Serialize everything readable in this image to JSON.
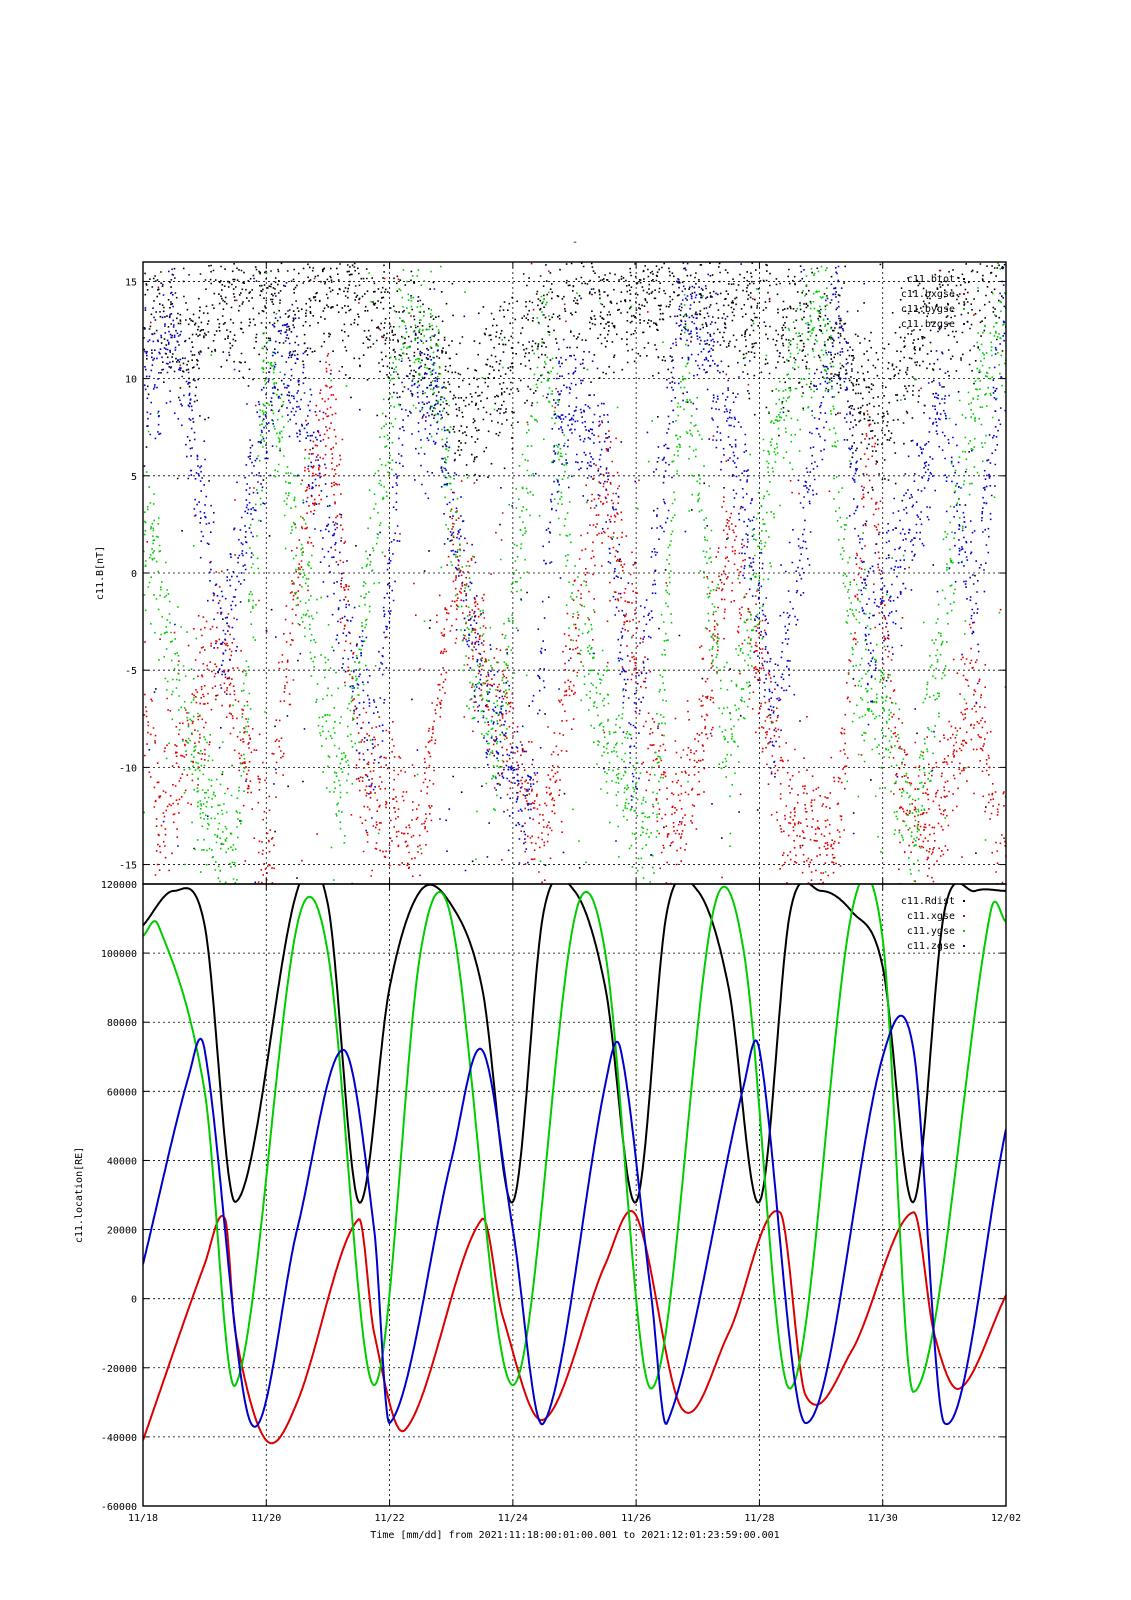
{
  "figure_title": "-",
  "xaxis": {
    "label": "Time [mm/dd]  from 2021:11:18:00:01:00.001  to  2021:12:01:23:59:00.001",
    "range": [
      "2021-11-18",
      "2021-12-02"
    ],
    "tick_labels": [
      "11/18",
      "11/20",
      "11/22",
      "11/24",
      "11/26",
      "11/28",
      "11/30",
      "12/02"
    ]
  },
  "chart_data": [
    {
      "type": "scatter",
      "ylabel": "c11.B[nT]",
      "ylim": [
        -16,
        16
      ],
      "yticks": [
        -15,
        -10,
        -5,
        0,
        5,
        10,
        15
      ],
      "grid": true,
      "legend_position": "top-right",
      "series": [
        {
          "name": "c11.btot",
          "color": "#000000",
          "x": [
            "11/18 06:00",
            "11/18 18:00",
            "11/19 06:00",
            "11/20 12:00",
            "11/21 06:00",
            "11/22 18:00",
            "11/23 06:00",
            "11/24 18:00",
            "11/25 06:00",
            "11/26 06:00",
            "11/27 06:00",
            "11/27 18:00",
            "11/29 00:00",
            "11/29 12:00",
            "11/30 00:00",
            "11/30 18:00",
            "12/01 18:00"
          ],
          "y": [
            14,
            11,
            14,
            14,
            15,
            11,
            8,
            14,
            14,
            14,
            15,
            13,
            13,
            10,
            8,
            13,
            15
          ]
        },
        {
          "name": "c11.bxgse",
          "color": "#dd0000",
          "x": [
            "11/18 00:00",
            "11/18 06:00",
            "11/18 18:00",
            "11/19 06:00",
            "11/20 00:00",
            "11/20 12:00",
            "11/21 00:00",
            "11/21 12:00",
            "11/22 12:00",
            "11/23 00:00",
            "11/23 12:00",
            "11/24 12:00",
            "11/25 00:00",
            "11/25 12:00",
            "11/26 12:00",
            "11/27 00:00",
            "11/27 12:00",
            "11/28 12:00",
            "11/29 06:00",
            "11/29 18:00",
            "11/30 06:00",
            "11/30 18:00",
            "12/01 12:00",
            "12/01 21:00"
          ],
          "y": [
            -6,
            -13,
            -8,
            -3,
            -15,
            1,
            9,
            -10,
            -14,
            1,
            -4,
            -14,
            -3,
            5,
            -14,
            -9,
            2,
            -13,
            -14,
            7,
            -11,
            -13,
            -6,
            -14
          ]
        },
        {
          "name": "c11.bygse",
          "color": "#00cc00",
          "x": [
            "11/18 03:00",
            "11/18 12:00",
            "11/19 00:00",
            "11/19 12:00",
            "11/20 00:00",
            "11/20 18:00",
            "11/21 06:00",
            "11/22 06:00",
            "11/22 18:00",
            "11/23 06:00",
            "11/23 18:00",
            "11/24 12:00",
            "11/25 00:00",
            "11/25 12:00",
            "11/26 06:00",
            "11/26 18:00",
            "11/27 12:00",
            "11/28 06:00",
            "11/29 00:00",
            "11/29 12:00",
            "11/30 00:00",
            "11/30 12:00",
            "12/01 06:00",
            "12/01 20:00"
          ],
          "y": [
            2,
            -5,
            -12,
            -15,
            12,
            -4,
            -10,
            14,
            10,
            -3,
            -9,
            13,
            -2,
            -8,
            -15,
            12,
            -10,
            7,
            14,
            -4,
            -7,
            -14,
            5,
            13
          ]
        },
        {
          "name": "c11.bzgse",
          "color": "#0000cc",
          "x": [
            "11/18 00:00",
            "11/18 12:00",
            "11/19 00:00",
            "11/19 06:00",
            "11/20 06:00",
            "11/20 18:00",
            "11/21 06:00",
            "11/21 18:00",
            "11/22 06:00",
            "11/22 18:00",
            "11/23 12:00",
            "11/24 06:00",
            "11/24 18:00",
            "11/25 12:00",
            "11/25 22:00",
            "11/26 18:00",
            "11/27 06:00",
            "11/27 18:00",
            "11/28 06:00",
            "11/29 06:00",
            "11/29 18:00",
            "11/30 06:00",
            "11/30 22:00",
            "12/01 12:00",
            "12/01 22:00"
          ],
          "y": [
            10,
            12,
            3,
            -4,
            12,
            6,
            -2,
            -10,
            10,
            8,
            -6,
            -12,
            9,
            6,
            -10,
            14,
            11,
            4,
            -8,
            15,
            -3,
            0,
            9,
            -2,
            12
          ]
        }
      ]
    },
    {
      "type": "line",
      "ylabel": "c11.location[RE]",
      "ylim": [
        -60000,
        120000
      ],
      "yticks": [
        -60000,
        -40000,
        -20000,
        0,
        20000,
        40000,
        60000,
        80000,
        100000,
        120000
      ],
      "grid": true,
      "legend_position": "top-right",
      "series": [
        {
          "name": "c11.Rdist",
          "color": "#000000",
          "x": [
            "11/18 00:00",
            "11/18 12:00",
            "11/19 00:00",
            "11/19 12:00",
            "11/20 12:00",
            "11/21 00:00",
            "11/21 12:00",
            "11/22 00:00",
            "11/22 12:00",
            "11/23 00:00",
            "11/23 12:00",
            "11/24 00:00",
            "11/24 12:00",
            "11/25 00:00",
            "11/25 12:00",
            "11/26 00:00",
            "11/26 12:00",
            "11/27 00:00",
            "11/27 12:00",
            "11/28 00:00",
            "11/28 12:00",
            "11/29 00:00",
            "11/29 12:00",
            "11/30 00:00",
            "11/30 12:00",
            "12/01 00:00",
            "12/01 12:00",
            "12/02 00:00"
          ],
          "y": [
            108000,
            118000,
            108000,
            28000,
            118000,
            114000,
            28000,
            90000,
            118000,
            114000,
            90000,
            28000,
            112000,
            118000,
            90000,
            28000,
            112000,
            118000,
            90000,
            28000,
            112000,
            118000,
            112000,
            96000,
            28000,
            112000,
            118000,
            118000
          ]
        },
        {
          "name": "c11.xgse",
          "color": "#dd0000",
          "x": [
            "11/18 00:00",
            "11/19 00:00",
            "11/19 08:00",
            "11/19 12:00",
            "11/20 00:00",
            "11/20 12:00",
            "11/21 12:00",
            "11/21 18:00",
            "11/22 06:00",
            "11/23 12:00",
            "11/23 20:00",
            "11/24 12:00",
            "11/25 12:00",
            "11/26 00:00",
            "11/26 18:00",
            "11/27 12:00",
            "11/28 08:00",
            "11/28 18:00",
            "11/29 12:00",
            "11/30 12:00",
            "11/30 20:00",
            "12/01 06:00",
            "12/02 00:00"
          ],
          "y": [
            -41000,
            10000,
            23000,
            -10000,
            -41000,
            -30000,
            23000,
            -10000,
            -38000,
            23000,
            -5000,
            -35000,
            10000,
            24000,
            -32000,
            -10000,
            25000,
            -28000,
            -15000,
            25000,
            -10000,
            -26000,
            1000
          ]
        },
        {
          "name": "c11.ygse",
          "color": "#00cc00",
          "x": [
            "11/18 00:00",
            "11/18 06:00",
            "11/19 00:00",
            "11/19 12:00",
            "11/20 12:00",
            "11/21 00:00",
            "11/21 18:00",
            "11/22 12:00",
            "11/23 00:00",
            "11/24 00:00",
            "11/25 00:00",
            "11/25 12:00",
            "11/26 06:00",
            "11/27 06:00",
            "11/27 18:00",
            "11/28 12:00",
            "11/29 12:00",
            "11/30 00:00",
            "11/30 12:00",
            "12/01 18:00",
            "12/02 00:00"
          ],
          "y": [
            105000,
            108000,
            60000,
            -25000,
            108000,
            100000,
            -25000,
            100000,
            110000,
            -25000,
            110000,
            100000,
            -26000,
            112000,
            100000,
            -26000,
            112000,
            104000,
            -27000,
            112000,
            109000
          ]
        },
        {
          "name": "c11.zgse",
          "color": "#0000cc",
          "x": [
            "11/18 00:00",
            "11/18 18:00",
            "11/19 00:00",
            "11/19 18:00",
            "11/20 12:00",
            "11/21 06:00",
            "11/21 18:00",
            "11/22 00:00",
            "11/23 00:00",
            "11/23 12:00",
            "11/24 00:00",
            "11/24 12:00",
            "11/25 12:00",
            "11/25 18:00",
            "11/26 06:00",
            "11/26 12:00",
            "11/27 18:00",
            "11/28 00:00",
            "11/28 18:00",
            "11/30 00:00",
            "11/30 12:00",
            "12/01 00:00",
            "12/02 00:00"
          ],
          "y": [
            10000,
            65000,
            72000,
            -36000,
            20000,
            72000,
            20000,
            -36000,
            40000,
            72000,
            20000,
            -36000,
            62000,
            72000,
            0,
            -36000,
            62000,
            72000,
            -36000,
            70000,
            72000,
            -36000,
            49000
          ]
        }
      ]
    }
  ]
}
